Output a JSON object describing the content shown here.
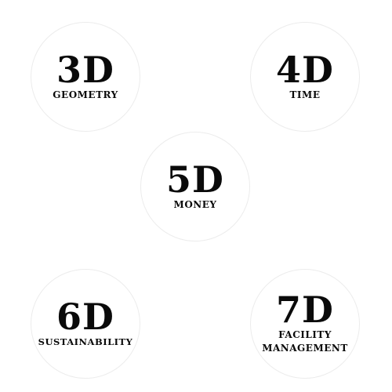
{
  "dimensions": [
    {
      "dim": "3D",
      "label_lines": [
        "GEOMETRY"
      ]
    },
    {
      "dim": "4D",
      "label_lines": [
        "TIME"
      ]
    },
    {
      "dim": "5D",
      "label_lines": [
        "MONEY"
      ]
    },
    {
      "dim": "6D",
      "label_lines": [
        "SUSTAINABILITY"
      ]
    },
    {
      "dim": "7D",
      "label_lines": [
        "FACILITY",
        "MANAGEMENT"
      ]
    }
  ]
}
